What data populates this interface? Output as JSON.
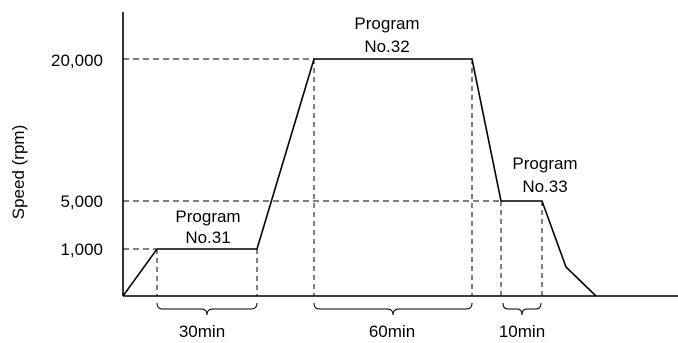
{
  "chart_data": {
    "type": "line",
    "title": "",
    "xlabel": "",
    "ylabel": "Speed (rpm)",
    "y_scale": "non-linear",
    "y_ticks": [
      {
        "value": 1000,
        "label": "1,000"
      },
      {
        "value": 5000,
        "label": "5,000"
      },
      {
        "value": 20000,
        "label": "20,000"
      }
    ],
    "grid": false,
    "legend": "none",
    "line_color": "#000000",
    "phases": [
      {
        "program": "Program No.31",
        "line1": "Program",
        "line2": "No.31",
        "speed": 1000,
        "duration_label": "30min"
      },
      {
        "program": "Program No.32",
        "line1": "Program",
        "line2": "No.32",
        "speed": 20000,
        "duration_label": "60min"
      },
      {
        "program": "Program No.33",
        "line1": "Program",
        "line2": "No.33",
        "speed": 5000,
        "duration_label": "10min"
      }
    ]
  }
}
